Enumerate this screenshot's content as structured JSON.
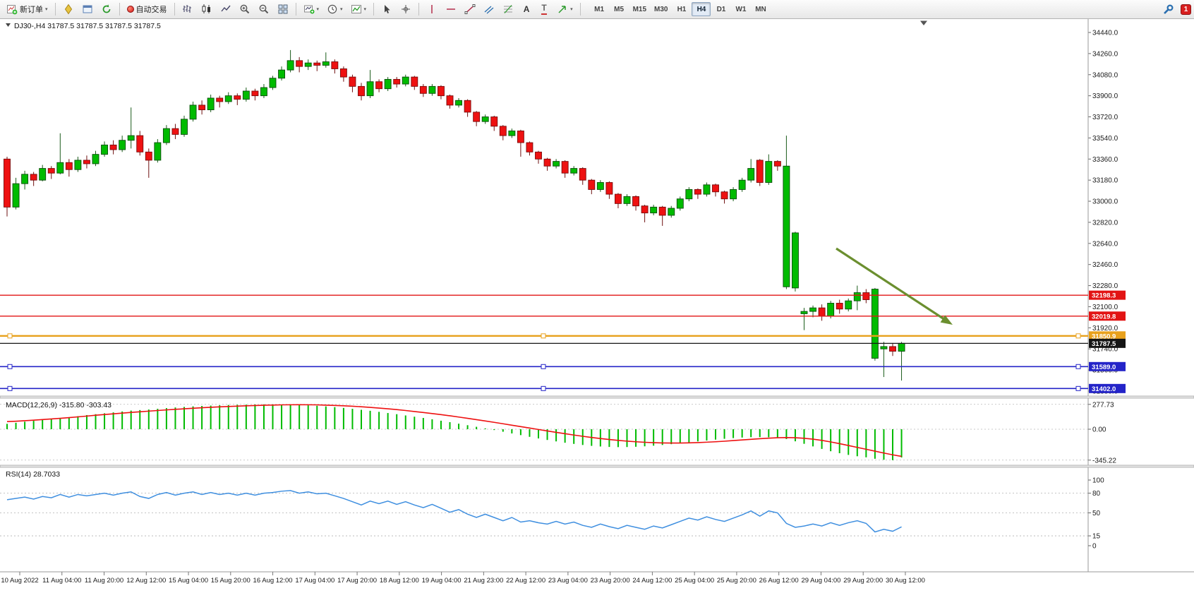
{
  "toolbar": {
    "new_order_label": "新订单",
    "auto_trading_label": "自动交易",
    "text_tool_label": "A",
    "label_tool_label": "T",
    "timeframes": [
      "M1",
      "M5",
      "M15",
      "M30",
      "H1",
      "H4",
      "D1",
      "W1",
      "MN"
    ],
    "active_timeframe": "H4",
    "alert_badge": "1"
  },
  "chart_data": {
    "type": "candlestick",
    "symbol_line": "DJ30-,H4 31787.5 31787.5 31787.5 31787.5",
    "timeframe": "H4",
    "last_price": "31787.5",
    "colors": {
      "up": "#00bb00",
      "down": "#ee1111",
      "rsi": "#3f8fe0",
      "arrow": "#6b8f2f"
    },
    "price_axis": [
      "34440.0",
      "34260.0",
      "34080.0",
      "33900.0",
      "33720.0",
      "33540.0",
      "33360.0",
      "33180.0",
      "33000.0",
      "32820.0",
      "32640.0",
      "32460.0",
      "32280.0",
      "32100.0",
      "31920.0",
      "31740.0",
      "31560.0",
      "31380.0"
    ],
    "hlines": [
      {
        "label": "32198.3",
        "price": 32198.3,
        "color": "#e21414",
        "width": 1.4,
        "handles": false
      },
      {
        "label": "32019.8",
        "price": 32019.8,
        "color": "#e21414",
        "width": 1.4,
        "handles": false
      },
      {
        "label": "31850.9",
        "price": 31850.9,
        "color": "#e8a11c",
        "width": 2.4,
        "handles": true
      },
      {
        "label": "31787.5",
        "price": 31787.5,
        "color": "#141414",
        "width": 1.2,
        "handles": false
      },
      {
        "label": "31589.0",
        "price": 31589.0,
        "color": "#2424c8",
        "width": 1.6,
        "handles": true
      },
      {
        "label": "31402.0",
        "price": 31402.0,
        "color": "#2424c8",
        "width": 1.6,
        "handles": true
      }
    ],
    "time_axis": [
      "10 Aug 2022",
      "11 Aug 04:00",
      "11 Aug 20:00",
      "12 Aug 12:00",
      "15 Aug 04:00",
      "15 Aug 20:00",
      "16 Aug 12:00",
      "17 Aug 04:00",
      "17 Aug 20:00",
      "18 Aug 12:00",
      "19 Aug 04:00",
      "21 Aug 23:00",
      "22 Aug 12:00",
      "23 Aug 04:00",
      "23 Aug 20:00",
      "24 Aug 12:00",
      "25 Aug 04:00",
      "25 Aug 20:00",
      "26 Aug 12:00",
      "29 Aug 04:00",
      "29 Aug 20:00",
      "30 Aug 12:00"
    ],
    "candles": [
      [
        33360,
        33380,
        32870,
        32950
      ],
      [
        32950,
        33200,
        32930,
        33150
      ],
      [
        33150,
        33260,
        33100,
        33230
      ],
      [
        33230,
        33250,
        33130,
        33180
      ],
      [
        33180,
        33310,
        33170,
        33280
      ],
      [
        33280,
        33300,
        33190,
        33240
      ],
      [
        33240,
        33580,
        33230,
        33330
      ],
      [
        33330,
        33360,
        33210,
        33270
      ],
      [
        33270,
        33380,
        33250,
        33350
      ],
      [
        33350,
        33390,
        33280,
        33320
      ],
      [
        33320,
        33430,
        33300,
        33400
      ],
      [
        33400,
        33510,
        33380,
        33480
      ],
      [
        33480,
        33520,
        33400,
        33440
      ],
      [
        33440,
        33560,
        33420,
        33520
      ],
      [
        33520,
        33800,
        33450,
        33560
      ],
      [
        33560,
        33600,
        33390,
        33420
      ],
      [
        33420,
        33450,
        33200,
        33350
      ],
      [
        33350,
        33530,
        33330,
        33500
      ],
      [
        33500,
        33650,
        33480,
        33620
      ],
      [
        33620,
        33660,
        33530,
        33570
      ],
      [
        33570,
        33730,
        33550,
        33700
      ],
      [
        33700,
        33850,
        33680,
        33820
      ],
      [
        33820,
        33860,
        33740,
        33780
      ],
      [
        33780,
        33910,
        33760,
        33880
      ],
      [
        33880,
        33900,
        33800,
        33850
      ],
      [
        33850,
        33930,
        33830,
        33900
      ],
      [
        33900,
        33920,
        33820,
        33870
      ],
      [
        33870,
        33970,
        33850,
        33940
      ],
      [
        33940,
        33960,
        33860,
        33900
      ],
      [
        33900,
        34000,
        33880,
        33970
      ],
      [
        33970,
        34070,
        33950,
        34050
      ],
      [
        34050,
        34150,
        34030,
        34120
      ],
      [
        34120,
        34290,
        34100,
        34200
      ],
      [
        34200,
        34230,
        34100,
        34150
      ],
      [
        34150,
        34210,
        34120,
        34180
      ],
      [
        34180,
        34200,
        34110,
        34160
      ],
      [
        34160,
        34270,
        34140,
        34190
      ],
      [
        34190,
        34210,
        34090,
        34130
      ],
      [
        34130,
        34150,
        34020,
        34060
      ],
      [
        34060,
        34080,
        33930,
        33980
      ],
      [
        33980,
        34010,
        33860,
        33900
      ],
      [
        33900,
        34120,
        33880,
        34020
      ],
      [
        34020,
        34040,
        33930,
        33960
      ],
      [
        33960,
        34060,
        33940,
        34040
      ],
      [
        34040,
        34060,
        33970,
        34000
      ],
      [
        34000,
        34080,
        33980,
        34060
      ],
      [
        34060,
        34070,
        33950,
        33980
      ],
      [
        33980,
        34000,
        33890,
        33920
      ],
      [
        33920,
        34000,
        33900,
        33980
      ],
      [
        33980,
        33990,
        33870,
        33900
      ],
      [
        33900,
        33910,
        33790,
        33820
      ],
      [
        33820,
        33880,
        33800,
        33860
      ],
      [
        33860,
        33870,
        33720,
        33760
      ],
      [
        33760,
        33770,
        33640,
        33680
      ],
      [
        33680,
        33740,
        33660,
        33720
      ],
      [
        33720,
        33730,
        33600,
        33640
      ],
      [
        33640,
        33650,
        33520,
        33560
      ],
      [
        33560,
        33620,
        33540,
        33600
      ],
      [
        33600,
        33610,
        33380,
        33500
      ],
      [
        33500,
        33510,
        33390,
        33420
      ],
      [
        33420,
        33430,
        33320,
        33360
      ],
      [
        33360,
        33370,
        33260,
        33300
      ],
      [
        33300,
        33360,
        33280,
        33340
      ],
      [
        33340,
        33350,
        33200,
        33240
      ],
      [
        33240,
        33300,
        33220,
        33280
      ],
      [
        33280,
        33290,
        33140,
        33180
      ],
      [
        33180,
        33190,
        33060,
        33100
      ],
      [
        33100,
        33180,
        33080,
        33160
      ],
      [
        33160,
        33170,
        33020,
        33060
      ],
      [
        33060,
        33070,
        32940,
        32980
      ],
      [
        32980,
        33060,
        32960,
        33040
      ],
      [
        33040,
        33050,
        32920,
        32960
      ],
      [
        32960,
        32970,
        32820,
        32900
      ],
      [
        32900,
        32970,
        32880,
        32950
      ],
      [
        32950,
        32960,
        32790,
        32880
      ],
      [
        32880,
        32960,
        32860,
        32940
      ],
      [
        32940,
        33040,
        32920,
        33020
      ],
      [
        33020,
        33120,
        33000,
        33100
      ],
      [
        33100,
        33110,
        33020,
        33060
      ],
      [
        33060,
        33160,
        33040,
        33140
      ],
      [
        33140,
        33150,
        33040,
        33080
      ],
      [
        33080,
        33090,
        32980,
        33020
      ],
      [
        33020,
        33120,
        33000,
        33100
      ],
      [
        33100,
        33200,
        33080,
        33180
      ],
      [
        33180,
        33360,
        33160,
        33280
      ],
      [
        33350,
        33360,
        33130,
        33160
      ],
      [
        33160,
        33400,
        33140,
        33340
      ],
      [
        33340,
        33350,
        33260,
        33300
      ],
      [
        32270,
        33560,
        32250,
        33300
      ],
      [
        32260,
        32740,
        32230,
        32730
      ],
      [
        32040,
        32090,
        31900,
        32060
      ],
      [
        32060,
        32110,
        32010,
        32090
      ],
      [
        32090,
        32120,
        31980,
        32020
      ],
      [
        32020,
        32150,
        32000,
        32130
      ],
      [
        32130,
        32160,
        32040,
        32080
      ],
      [
        32080,
        32170,
        32060,
        32150
      ],
      [
        32150,
        32280,
        32070,
        32220
      ],
      [
        32220,
        32250,
        32130,
        32160
      ],
      [
        31660,
        32260,
        31640,
        32250
      ],
      [
        31740,
        31800,
        31500,
        31760
      ],
      [
        31760,
        31790,
        31680,
        31720
      ],
      [
        31720,
        31800,
        31470,
        31787.5
      ]
    ],
    "macd": {
      "label": "MACD(12,26,9) -315.80 -303.43",
      "axis": [
        {
          "v": 277.73,
          "label": "277.73"
        },
        {
          "v": 0,
          "label": "0.00"
        },
        {
          "v": -345.22,
          "label": "-345.22"
        }
      ],
      "histogram": [
        60,
        72,
        84,
        94,
        104,
        114,
        124,
        134,
        146,
        158,
        168,
        178,
        188,
        198,
        208,
        214,
        220,
        228,
        236,
        243,
        249,
        255,
        260,
        264,
        268,
        271,
        273,
        275,
        276.5,
        277.7,
        277.7,
        276,
        274,
        271,
        267,
        262,
        255,
        247,
        238,
        228,
        217,
        206,
        194,
        181,
        168,
        154,
        140,
        126,
        111,
        95,
        79,
        62,
        45,
        27,
        9,
        -9,
        -28,
        -47,
        -66,
        -85,
        -103,
        -120,
        -136,
        -151,
        -164,
        -176,
        -186,
        -193,
        -198,
        -200,
        -199,
        -196,
        -191,
        -184,
        -176,
        -167,
        -157,
        -147,
        -136,
        -126,
        -116,
        -107,
        -99,
        -93,
        -89,
        -88,
        -90,
        -95,
        -110,
        -135,
        -163,
        -192,
        -220,
        -246,
        -268,
        -287,
        -302,
        -314,
        -330,
        -341,
        -345.2,
        -315.8
      ],
      "signal": [
        85,
        89,
        95,
        101,
        108,
        115,
        122,
        130,
        138,
        147,
        156,
        164,
        172,
        180,
        188,
        195,
        202,
        209,
        216,
        222,
        228,
        234,
        240,
        245,
        250,
        254,
        258,
        262,
        265,
        268,
        270,
        272,
        273,
        273.5,
        273,
        272,
        269,
        266,
        262,
        257,
        251,
        244,
        236,
        228,
        219,
        209,
        198,
        187,
        175,
        163,
        150,
        136,
        122,
        107,
        92,
        77,
        61,
        45,
        29,
        13,
        -3,
        -19,
        -35,
        -50,
        -65,
        -79,
        -92,
        -104,
        -115,
        -125,
        -133,
        -140,
        -146,
        -150,
        -153,
        -154,
        -154,
        -152,
        -149,
        -145,
        -140,
        -134,
        -127,
        -120,
        -113,
        -106,
        -100,
        -95,
        -93,
        -95,
        -101,
        -111,
        -125,
        -142,
        -161,
        -182,
        -203,
        -224,
        -245,
        -266,
        -286,
        -303.4
      ]
    },
    "rsi": {
      "label": "RSI(14) 28.7033",
      "axis": [
        {
          "v": 100,
          "label": "100",
          "dashed": false
        },
        {
          "v": 80,
          "label": "80",
          "dashed": true
        },
        {
          "v": 50,
          "label": "50",
          "dashed": true
        },
        {
          "v": 15,
          "label": "15",
          "dashed": true
        },
        {
          "v": 0,
          "label": "0",
          "dashed": false
        }
      ],
      "values": [
        70,
        72,
        74,
        71,
        75,
        73,
        78,
        74,
        78,
        76,
        78,
        80,
        77,
        80,
        82,
        75,
        72,
        78,
        81,
        77,
        80,
        82,
        78,
        81,
        78,
        80,
        77,
        80,
        77,
        80,
        81,
        83,
        84,
        80,
        82,
        79,
        80,
        76,
        72,
        67,
        62,
        68,
        64,
        68,
        63,
        67,
        62,
        58,
        63,
        57,
        51,
        55,
        48,
        43,
        48,
        43,
        38,
        43,
        36,
        38,
        35,
        33,
        37,
        33,
        36,
        31,
        28,
        33,
        29,
        26,
        31,
        28,
        25,
        30,
        27,
        32,
        37,
        42,
        39,
        44,
        40,
        37,
        42,
        47,
        53,
        45,
        53,
        50,
        34,
        28,
        30,
        33,
        30,
        35,
        31,
        35,
        38,
        34,
        21,
        25,
        22,
        28.7
      ]
    }
  }
}
